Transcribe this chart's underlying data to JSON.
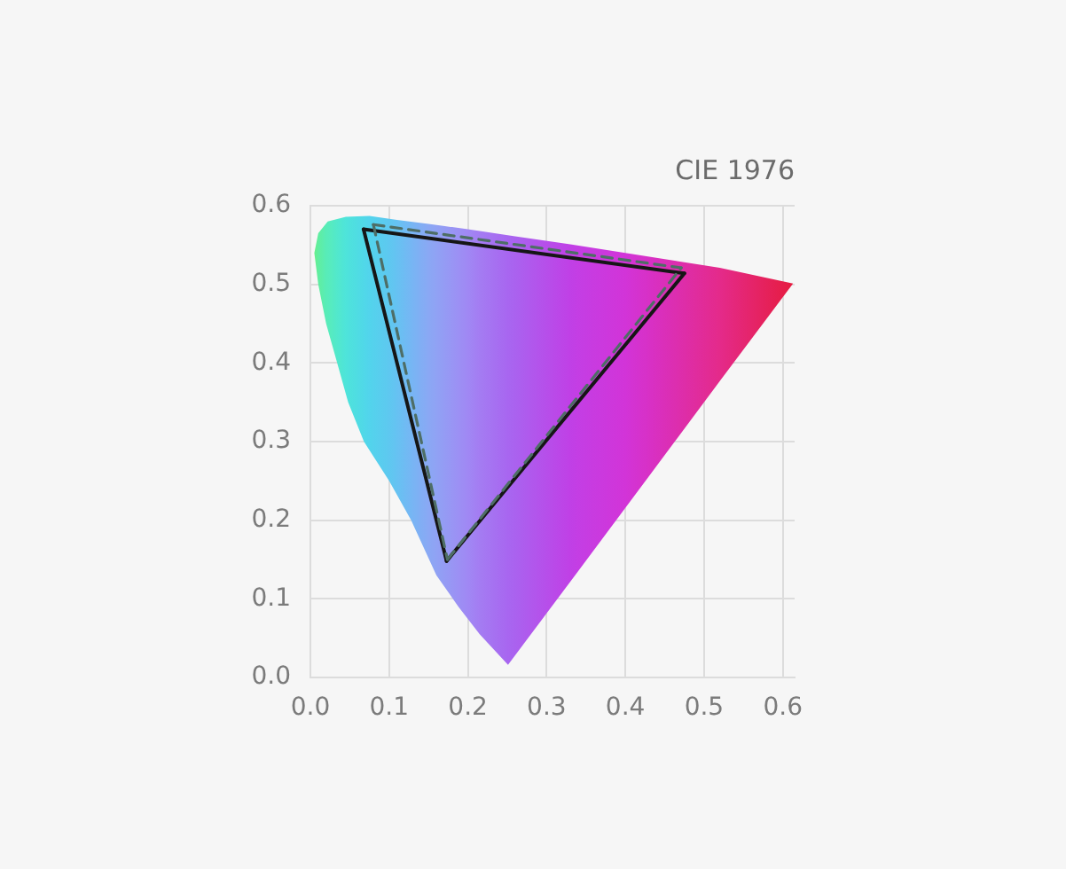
{
  "chart_data": {
    "type": "line",
    "title": "CIE 1976",
    "xlim": [
      0,
      0.615
    ],
    "ylim": [
      0,
      0.6
    ],
    "xticks": [
      {
        "value": 0,
        "label": "0.0"
      },
      0.1,
      0.2,
      0.3,
      0.4,
      0.5,
      0.6
    ],
    "yticks": [
      {
        "value": 0,
        "label": "0.0"
      },
      0.1,
      0.2,
      0.3,
      0.4,
      0.5,
      0.6
    ],
    "grid": true,
    "marker": "none",
    "series": [
      {
        "type": "area",
        "x": [
          0.251,
          0.215,
          0.188,
          0.16,
          0.128,
          0.1,
          0.068,
          0.048,
          0.034,
          0.02,
          0.01,
          0.005,
          0.01,
          0.022,
          0.045,
          0.075,
          0.11,
          0.15,
          0.2,
          0.26,
          0.33,
          0.4,
          0.52,
          0.613,
          0.52,
          0.433,
          0.34
        ],
        "values": [
          0.016,
          0.055,
          0.09,
          0.13,
          0.2,
          0.25,
          0.3,
          0.35,
          0.4,
          0.45,
          0.5,
          0.54,
          0.565,
          0.58,
          0.586,
          0.587,
          0.582,
          0.577,
          0.57,
          0.561,
          0.551,
          0.54,
          0.521,
          0.501,
          0.377,
          0.26,
          0.135
        ],
        "colors": [
          "#a866f0",
          "#a47cf2",
          "#9c90f4",
          "#90a2f4",
          "#76b6f4",
          "#5ec8f0",
          "#50d8e8",
          "#4ee2dc",
          "#52e8cc",
          "#58ecb8",
          "#60eea0",
          "#66ef8a",
          "#60eea0",
          "#58ecba",
          "#4ee4da",
          "#52d4ec",
          "#66c2f2",
          "#8aa8f4",
          "#a088f4",
          "#aa62ef",
          "#c040e6",
          "#d234d8",
          "#e42a8a",
          "#e61c40",
          "#e42a8a",
          "#d830c4",
          "#c43ee4"
        ]
      },
      {
        "type": "line",
        "x": [
          0.0675,
          0.475
        ],
        "values": [
          0.57,
          0.514
        ],
        "color": "#161616",
        "line_style": "solid"
      },
      {
        "type": "line",
        "x": [
          0.0675,
          0.173
        ],
        "values": [
          0.57,
          0.148
        ],
        "color": "#161616",
        "line_style": "solid"
      },
      {
        "type": "line",
        "x": [
          0.173,
          0.475
        ],
        "values": [
          0.148,
          0.514
        ],
        "color": "#161616",
        "line_style": "solid"
      },
      {
        "type": "line",
        "x": [
          0.08,
          0.471
        ],
        "values": [
          0.576,
          0.521
        ],
        "color": "#4e6e66",
        "line_style": "dashed"
      },
      {
        "type": "line",
        "x": [
          0.08,
          0.174
        ],
        "values": [
          0.576,
          0.15
        ],
        "color": "#4e6e66",
        "line_style": "dashed"
      },
      {
        "type": "line",
        "x": [
          0.174,
          0.471
        ],
        "values": [
          0.15,
          0.521
        ],
        "color": "#4e6e66",
        "line_style": "dashed"
      }
    ]
  }
}
